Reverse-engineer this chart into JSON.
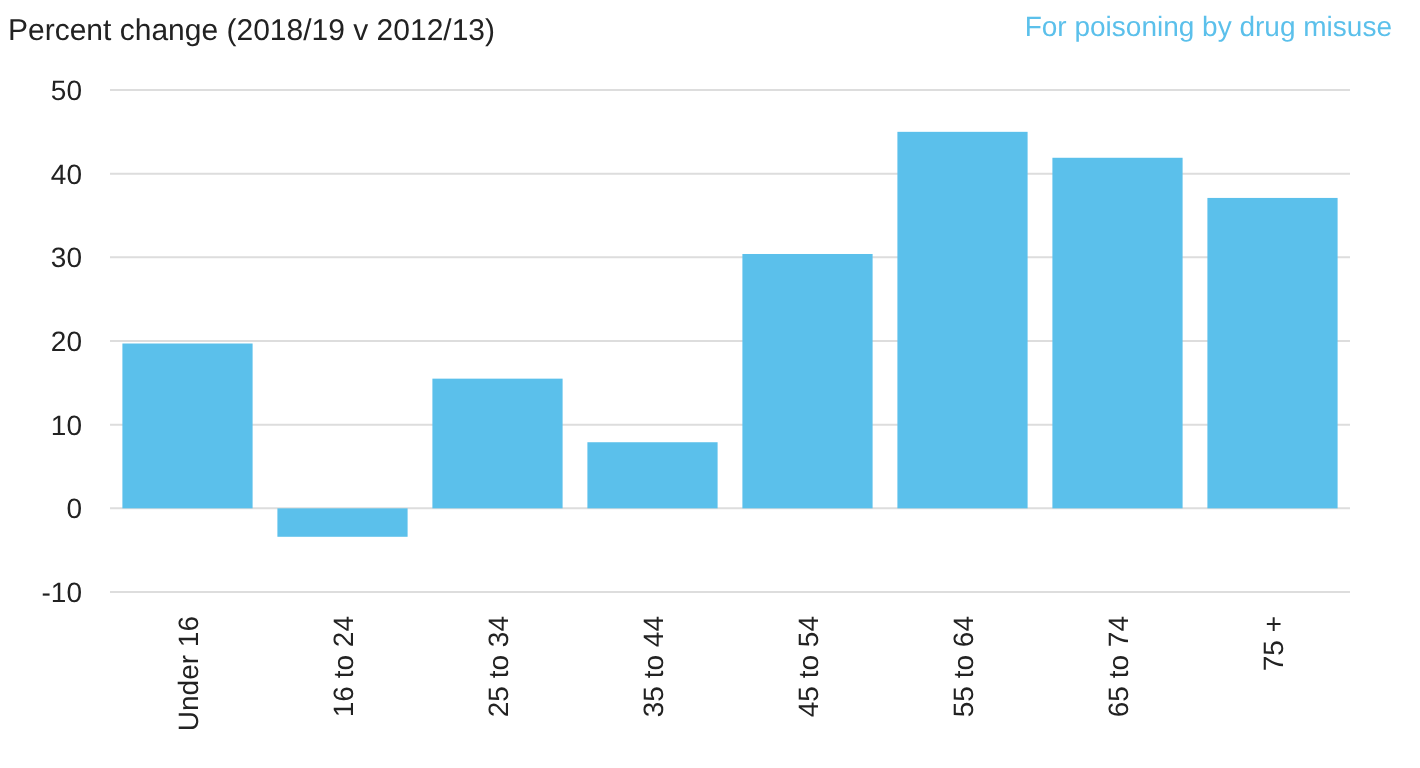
{
  "chart_data": {
    "type": "bar",
    "title": "Percent change (2018/19 v 2012/13)",
    "subtitle": "For poisoning by drug misuse",
    "categories": [
      "Under 16",
      "16 to 24",
      "25 to 34",
      "35 to 44",
      "45 to 54",
      "55 to 64",
      "65 to 74",
      "75 +"
    ],
    "values": [
      19.7,
      -3.4,
      15.5,
      7.9,
      30.4,
      45.0,
      41.9,
      37.1
    ],
    "color": "#5bc0eb",
    "ylim": [
      -10,
      50
    ],
    "yticks": [
      -10,
      0,
      10,
      20,
      30,
      40,
      50
    ],
    "grid": "y"
  }
}
